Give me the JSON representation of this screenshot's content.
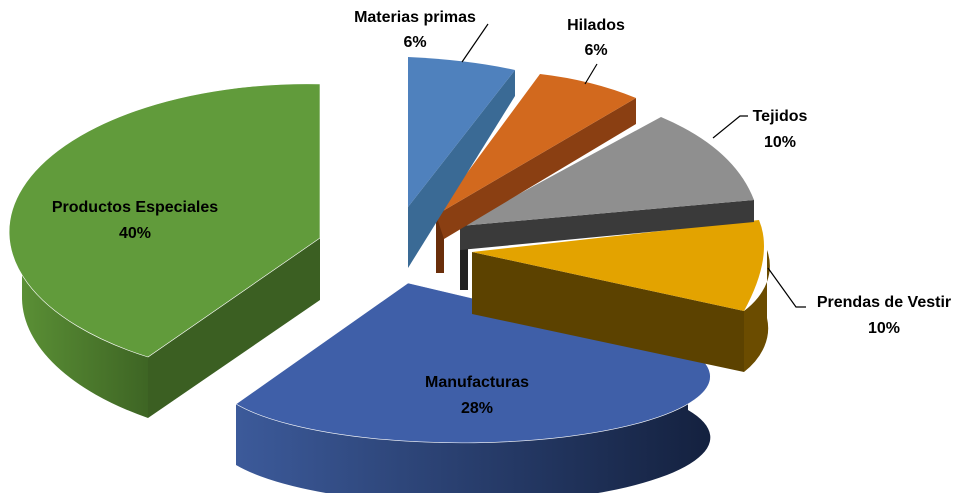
{
  "chart_data": {
    "type": "pie",
    "style": "3d-exploded",
    "title": "",
    "slices": [
      {
        "name": "Materias primas",
        "value": 6,
        "label": "6%",
        "color": "#4F81BD"
      },
      {
        "name": "Hilados",
        "value": 6,
        "label": "6%",
        "color": "#D2691E"
      },
      {
        "name": "Tejidos",
        "value": 10,
        "label": "10%",
        "color": "#8F8F8F"
      },
      {
        "name": "Prendas de Vestir",
        "value": 10,
        "label": "10%",
        "color": "#E3A300"
      },
      {
        "name": "Manufacturas",
        "value": 28,
        "label": "28%",
        "color": "#3F5FA8"
      },
      {
        "name": "Productos Especiales",
        "value": 40,
        "label": "40%",
        "color": "#619B3B"
      }
    ]
  }
}
